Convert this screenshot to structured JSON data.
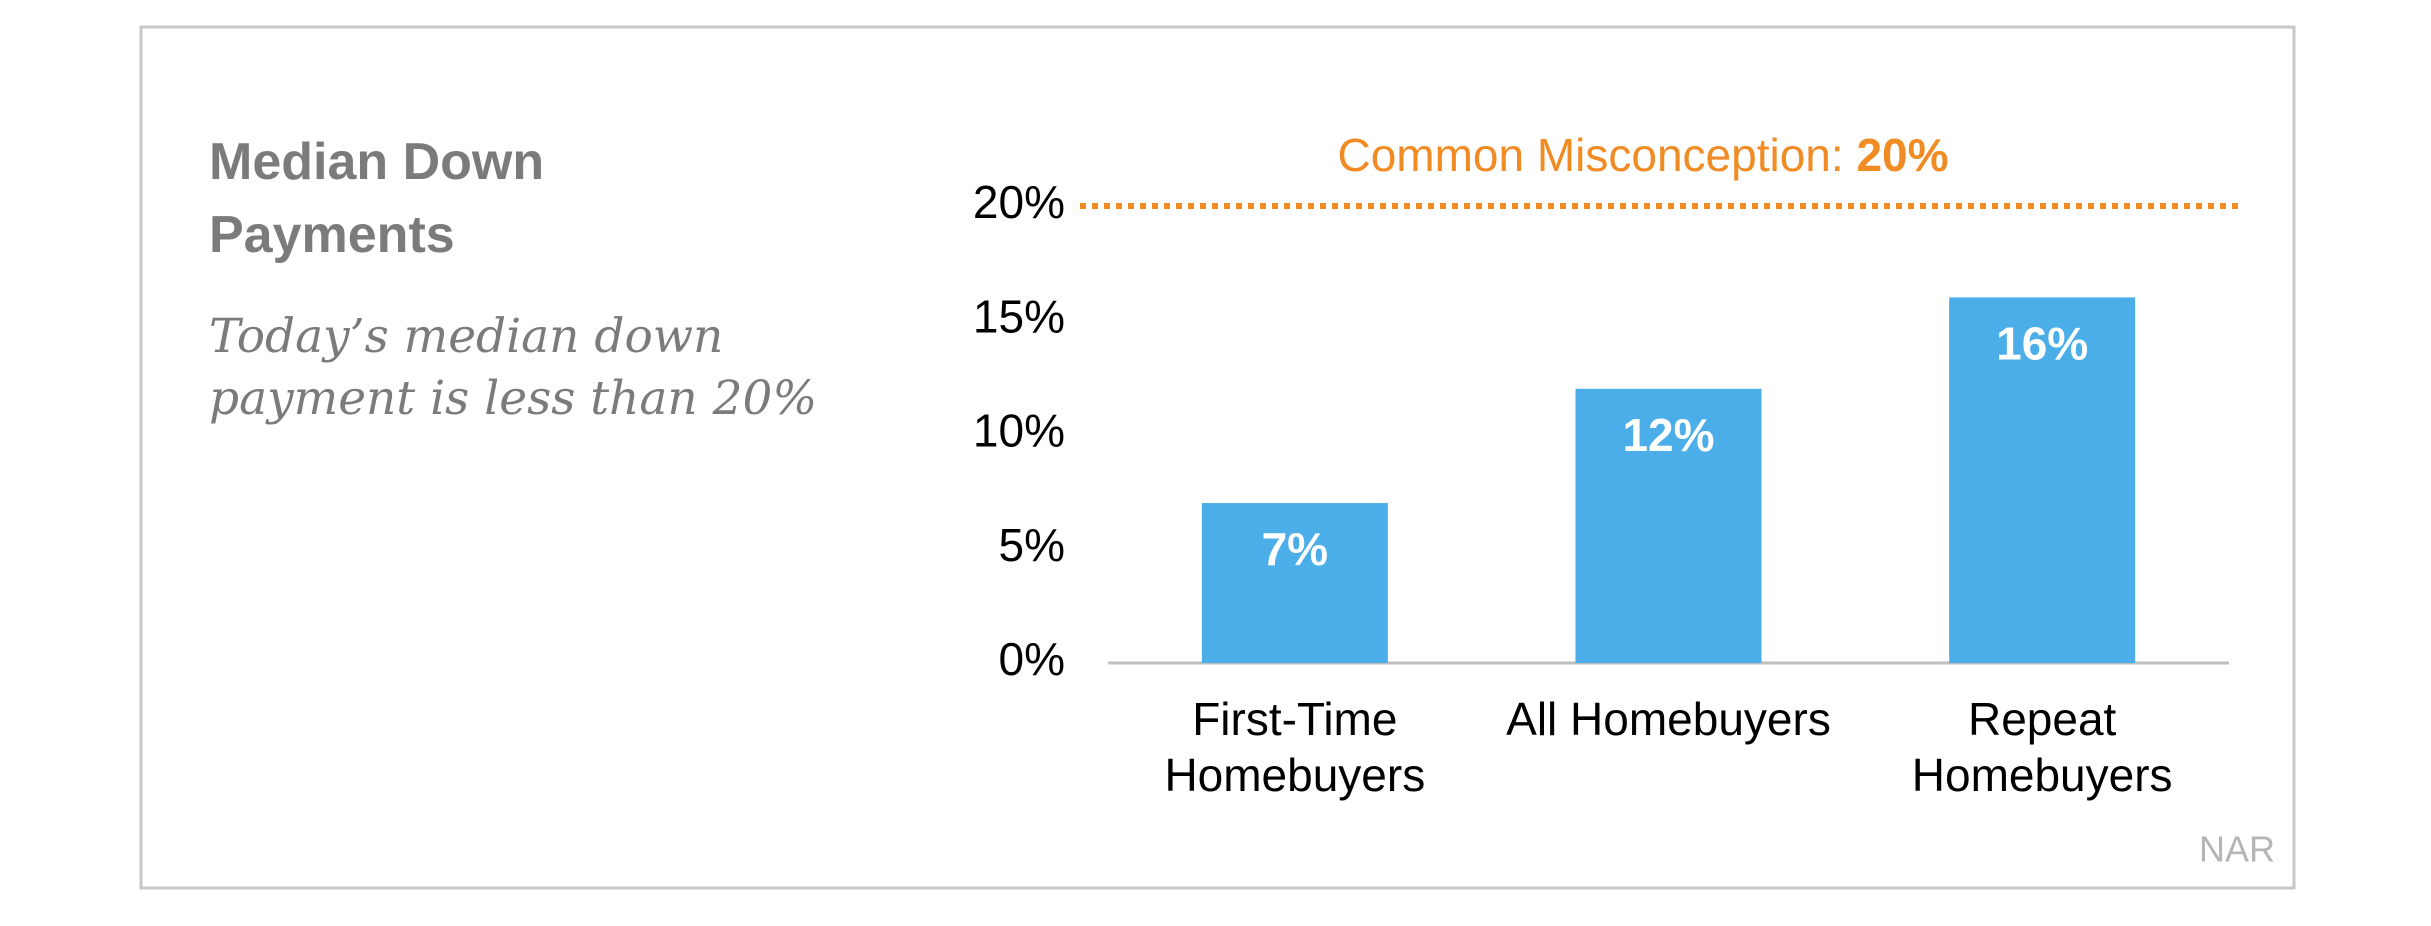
{
  "chart_data": {
    "type": "bar",
    "title": "Median Down Payments",
    "subtitle": "Today’s median down payment is less than 20%",
    "source": "NAR",
    "categories": [
      [
        "First-Time",
        "Homebuyers"
      ],
      [
        "All Homebuyers"
      ],
      [
        "Repeat",
        "Homebuyers"
      ]
    ],
    "values": [
      7,
      12,
      16
    ],
    "value_labels": [
      "7%",
      "12%",
      "16%"
    ],
    "color": "#4baee8",
    "ylim": [
      0,
      20
    ],
    "yticks": [
      {
        "value": 0,
        "label": "0%"
      },
      {
        "value": 5,
        "label": "5%"
      },
      {
        "value": 10,
        "label": "10%"
      },
      {
        "value": 15,
        "label": "15%"
      },
      {
        "value": 20,
        "label": "20%"
      }
    ],
    "grid": false,
    "reference_line": {
      "text": "Common Misconception:",
      "value": 20,
      "value_label": "20%",
      "color": "#f18b24"
    }
  }
}
